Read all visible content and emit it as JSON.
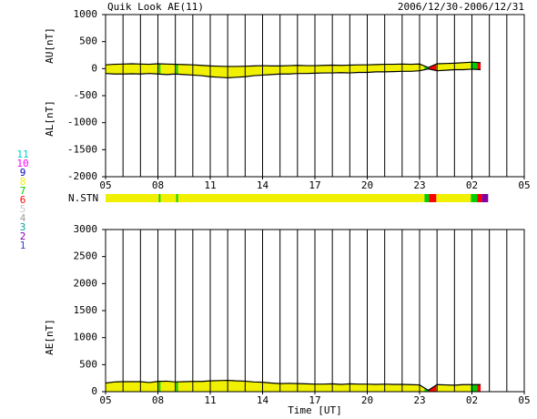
{
  "chart_data": [
    {
      "type": "line",
      "title": "Quik Look AE(11)",
      "subtitle": "2006/12/30-2006/12/31",
      "y_label_upper": "AU[nT]",
      "y_label_lower": "AL[nT]",
      "x": [
        5,
        5.5,
        6,
        6.5,
        7,
        7.5,
        8,
        8.5,
        9,
        9.5,
        10,
        10.5,
        11,
        11.5,
        12,
        12.5,
        13,
        13.5,
        14,
        14.5,
        15,
        15.5,
        16,
        16.5,
        17,
        17.5,
        18,
        18.5,
        19,
        19.5,
        20,
        20.5,
        21,
        21.5,
        22,
        22.5,
        23,
        23.5,
        24,
        24.5,
        25,
        25.5,
        26,
        26.5
      ],
      "series": [
        {
          "color": "#000000",
          "values": [
            70,
            80,
            85,
            90,
            85,
            80,
            90,
            85,
            80,
            75,
            70,
            60,
            50,
            45,
            40,
            40,
            45,
            50,
            55,
            50,
            50,
            55,
            60,
            55,
            55,
            60,
            65,
            60,
            65,
            70,
            70,
            75,
            80,
            80,
            85,
            80,
            85,
            20,
            90,
            95,
            100,
            110,
            120,
            110
          ]
        },
        {
          "color": "#000000",
          "values": [
            -90,
            -100,
            -100,
            -95,
            -100,
            -90,
            -100,
            -110,
            -100,
            -110,
            -120,
            -130,
            -150,
            -160,
            -170,
            -160,
            -150,
            -130,
            -120,
            -110,
            -100,
            -100,
            -90,
            -90,
            -85,
            -80,
            -80,
            -75,
            -80,
            -70,
            -70,
            -60,
            -60,
            -55,
            -50,
            -50,
            -40,
            -5,
            -40,
            -30,
            -20,
            -20,
            -10,
            -20
          ]
        }
      ],
      "xlim": [
        5,
        29
      ],
      "xticks": [
        {
          "value": 5,
          "label": "05"
        },
        {
          "value": 8,
          "label": "08"
        },
        11,
        14,
        17,
        20,
        23,
        {
          "value": 26,
          "label": "02"
        },
        {
          "value": 29,
          "label": "05"
        }
      ],
      "minor_step": 1,
      "ylim": [
        -2000,
        1000
      ],
      "yticks": [
        -2000,
        -1500,
        -1000,
        -500,
        0,
        500,
        1000
      ]
    },
    {
      "type": "line",
      "y_label": "AE[nT]",
      "x_label": "Time [UT]",
      "x": [
        5,
        5.5,
        6,
        6.5,
        7,
        7.5,
        8,
        8.5,
        9,
        9.5,
        10,
        10.5,
        11,
        11.5,
        12,
        12.5,
        13,
        13.5,
        14,
        14.5,
        15,
        15.5,
        16,
        16.5,
        17,
        17.5,
        18,
        18.5,
        19,
        19.5,
        20,
        20.5,
        21,
        21.5,
        22,
        22.5,
        23,
        23.5,
        24,
        24.5,
        25,
        25.5,
        26,
        26.5
      ],
      "series": [
        {
          "color": "#000000",
          "values": [
            160,
            180,
            185,
            185,
            185,
            170,
            190,
            195,
            180,
            185,
            190,
            190,
            200,
            205,
            210,
            200,
            195,
            180,
            175,
            160,
            150,
            155,
            150,
            145,
            140,
            140,
            145,
            135,
            145,
            140,
            140,
            135,
            140,
            135,
            135,
            130,
            125,
            25,
            130,
            125,
            120,
            130,
            130,
            130
          ]
        }
      ],
      "xlim": [
        5,
        29
      ],
      "xticks": [
        {
          "value": 5,
          "label": "05"
        },
        {
          "value": 8,
          "label": "08"
        },
        11,
        14,
        17,
        20,
        23,
        {
          "value": 26,
          "label": "02"
        },
        {
          "value": 29,
          "label": "05"
        }
      ],
      "minor_step": 1,
      "ylim": [
        0,
        3000
      ],
      "yticks": [
        0,
        500,
        1000,
        1500,
        2000,
        2500,
        3000
      ]
    }
  ],
  "stations": {
    "label": "N.STN",
    "start": [
      5,
      8.05,
      8.15,
      9.05,
      9.15,
      23.28,
      23.54,
      23.96,
      25.94,
      26.3,
      26.56
    ],
    "end": [
      8.05,
      8.15,
      9.05,
      9.15,
      23.28,
      23.54,
      23.96,
      25.94,
      26.3,
      26.56,
      26.93
    ],
    "count": [
      8,
      7,
      8,
      7,
      8,
      7,
      6,
      8,
      7,
      6,
      2
    ]
  },
  "legend": {
    "labels": [
      "11",
      "10",
      "9",
      "8",
      "7",
      "6",
      "5",
      "4",
      "3",
      "2",
      "1"
    ],
    "colors": [
      "#00d0d0",
      "#ff00ff",
      "#0000c0",
      "#f0f000",
      "#00d000",
      "#ff0000",
      "#c8c8c8",
      "#a0a0a0",
      "#00a0a0",
      "#8000a0",
      "#4040c0"
    ]
  }
}
